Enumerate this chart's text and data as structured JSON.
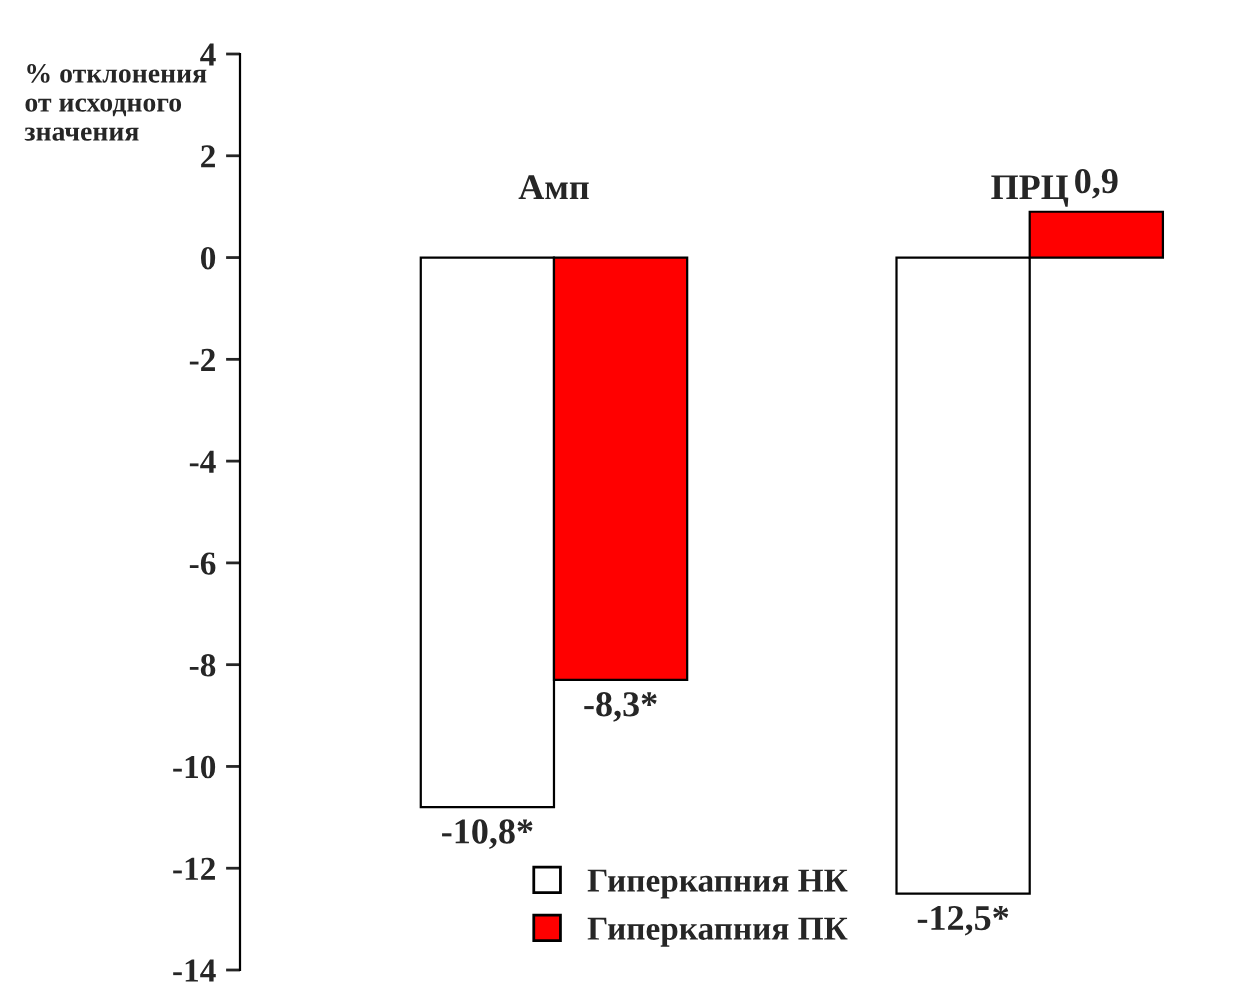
{
  "chart_data": {
    "type": "bar",
    "ylabel": "% отклонения\nот исходного\nзначения",
    "categories": [
      "Амп",
      "ПРЦ"
    ],
    "series": [
      {
        "name": "Гиперкапния НК",
        "color": "#ffffff",
        "values": [
          -10.8,
          -12.5
        ],
        "value_labels": [
          "-10,8*",
          "-12,5*"
        ]
      },
      {
        "name": "Гиперкапния ПК",
        "color": "#ff0000",
        "values": [
          -8.3,
          0.9
        ],
        "value_labels": [
          "-8,3*",
          "0,9"
        ]
      }
    ],
    "ylim": [
      -14,
      4
    ],
    "yticks": [
      -14,
      -12,
      -10,
      -8,
      -6,
      -4,
      -2,
      0,
      2,
      4
    ],
    "grid": false,
    "legend": "bottom"
  }
}
